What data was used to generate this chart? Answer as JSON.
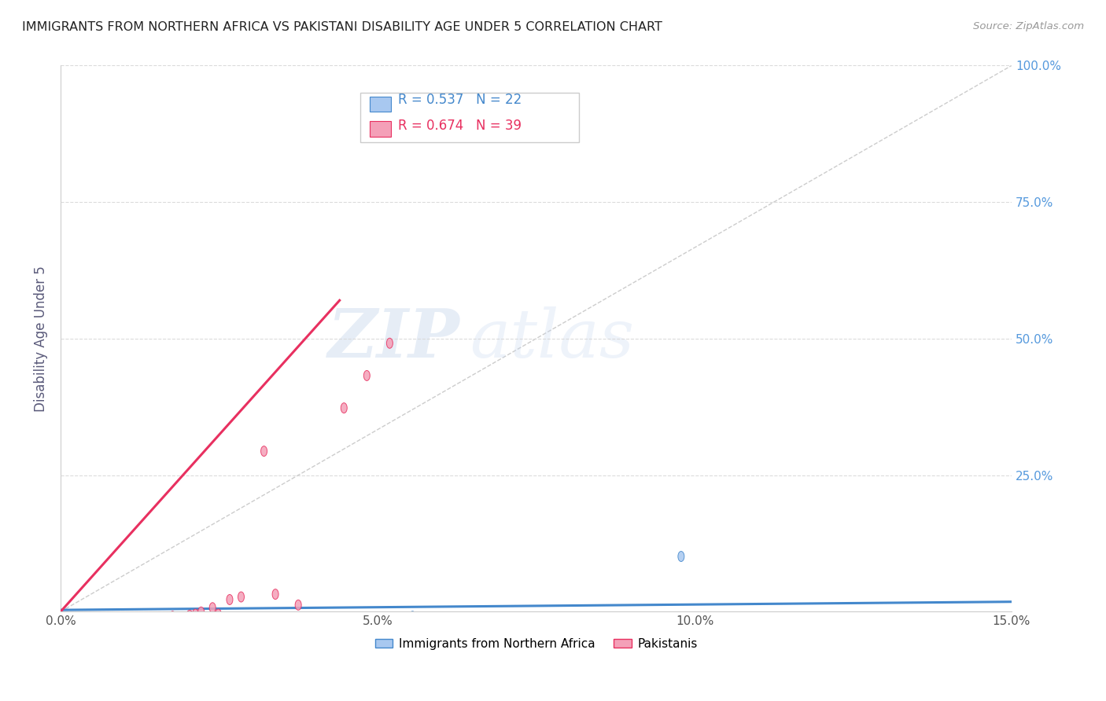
{
  "title": "IMMIGRANTS FROM NORTHERN AFRICA VS PAKISTANI DISABILITY AGE UNDER 5 CORRELATION CHART",
  "source": "Source: ZipAtlas.com",
  "xlabel": "",
  "ylabel": "Disability Age Under 5",
  "xlim": [
    0,
    0.15
  ],
  "ylim": [
    0,
    1.0
  ],
  "xticks": [
    0.0,
    0.05,
    0.1,
    0.15
  ],
  "xtick_labels": [
    "0.0%",
    "5.0%",
    "10.0%",
    "15.0%"
  ],
  "yticks_left": [
    0.0,
    0.25,
    0.5,
    0.75,
    1.0
  ],
  "ytick_labels_right": [
    "",
    "25.0%",
    "50.0%",
    "75.0%",
    "100.0%"
  ],
  "legend1_label": "Immigrants from Northern Africa",
  "legend2_label": "Pakistanis",
  "r1": 0.537,
  "n1": 22,
  "r2": 0.674,
  "n2": 39,
  "color_blue": "#a8c8f0",
  "color_pink": "#f4a0b8",
  "color_blue_line": "#4488cc",
  "color_pink_line": "#e83060",
  "color_ref_line": "#c0c0c0",
  "blue_x": [
    0.001,
    0.001,
    0.002,
    0.002,
    0.003,
    0.003,
    0.003,
    0.004,
    0.004,
    0.005,
    0.005,
    0.006,
    0.006,
    0.007,
    0.008,
    0.009,
    0.01,
    0.012,
    0.014,
    0.048,
    0.052,
    0.095
  ],
  "blue_y": [
    0.001,
    0.003,
    0.001,
    0.002,
    0.001,
    0.002,
    0.004,
    0.001,
    0.002,
    0.001,
    0.002,
    0.001,
    0.002,
    0.001,
    0.001,
    0.001,
    0.01,
    0.003,
    0.001,
    0.014,
    0.001,
    0.125
  ],
  "pink_x": [
    0.0005,
    0.001,
    0.001,
    0.001,
    0.002,
    0.002,
    0.002,
    0.002,
    0.003,
    0.003,
    0.003,
    0.004,
    0.004,
    0.004,
    0.005,
    0.005,
    0.006,
    0.006,
    0.006,
    0.007,
    0.007,
    0.008,
    0.008,
    0.009,
    0.009,
    0.01,
    0.01,
    0.011,
    0.012,
    0.013,
    0.014,
    0.016,
    0.018,
    0.022,
    0.024,
    0.028,
    0.036,
    0.04,
    0.044
  ],
  "pink_y": [
    0.001,
    0.001,
    0.002,
    0.003,
    0.001,
    0.002,
    0.003,
    0.01,
    0.001,
    0.002,
    0.003,
    0.001,
    0.002,
    0.012,
    0.001,
    0.002,
    0.002,
    0.008,
    0.014,
    0.003,
    0.005,
    0.003,
    0.005,
    0.01,
    0.016,
    0.004,
    0.018,
    0.022,
    0.008,
    0.03,
    0.018,
    0.045,
    0.05,
    0.32,
    0.055,
    0.035,
    0.4,
    0.46,
    0.52
  ],
  "blue_trend_x": [
    0.0,
    0.15
  ],
  "blue_trend_y": [
    0.003,
    0.018
  ],
  "pink_trend_x": [
    0.0,
    0.044
  ],
  "pink_trend_y": [
    0.0,
    0.57
  ],
  "ref_line_x": [
    0.0,
    0.15
  ],
  "ref_line_y": [
    0.0,
    1.0
  ],
  "background_color": "#ffffff",
  "grid_color": "#d8d8d8",
  "title_color": "#222222",
  "axis_label_color": "#5a5a7a",
  "right_axis_color": "#5599dd",
  "watermark_zip": "ZIP",
  "watermark_atlas": "atlas"
}
